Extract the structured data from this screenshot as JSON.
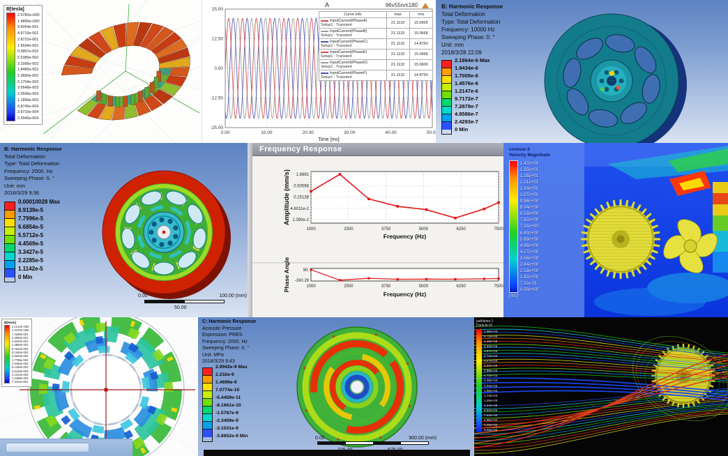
{
  "panels": {
    "maxwell_top": {
      "legend_title": "B[tesla]",
      "legend_values": [
        "2.5782e+000",
        "1.4895e+000",
        "8.6054e-001",
        "4.9716e-001",
        "2.8722e-001",
        "1.6594e-001",
        "9.5867e-002",
        "5.5385e-002",
        "3.1996e-002",
        "1.8485e-002",
        "1.0680e-002",
        "6.1704e-003",
        "3.5648e-003",
        "2.0596e-003",
        "1.1899e-003",
        "6.8745e-004",
        "3.9716e-004",
        "2.2945e-004"
      ]
    },
    "harmonic_10000": {
      "header_lines": [
        "B: Harmonic Response",
        "Total Deformation",
        "Type: Total Deformation",
        "Frequency: 10000 Hz",
        "Sweeping Phase: 0. °",
        "Unit: mm",
        "2018/3/28 22:09"
      ],
      "legend_values": [
        "2.1864e-6 Max",
        "1.9434e-6",
        "1.7005e-6",
        "1.4576e-6",
        "1.2147e-6",
        "9.7172e-7",
        "7.2879e-7",
        "4.8586e-7",
        "2.4293e-7",
        "0 Min"
      ]
    },
    "harmonic_2000": {
      "header_lines": [
        "B: Harmonic Response",
        "Total Deformation",
        "Type: Total Deformation",
        "Frequency: 2000. Hz",
        "Sweeping Phase: 0. °",
        "Unit: mm",
        "2018/3/29 9:36"
      ],
      "legend_values": [
        "0.00010028 Max",
        "8.9139e-5",
        "7.7996e-5",
        "6.6854e-5",
        "5.5712e-5",
        "4.4569e-5",
        "3.3427e-5",
        "2.2285e-5",
        "1.1142e-5",
        "0 Min"
      ],
      "scale_bar": {
        "left": "0.00",
        "center": "50.00",
        "right": "100.00 (mm)"
      }
    },
    "frequency_response": {
      "title": "Frequency Response"
    },
    "cfd_contour": {
      "legend_title_lines": [
        "contour-2",
        "Velocity Magnitude"
      ],
      "legend_values": [
        "1.42e+01",
        "1.35e+01",
        "1.28e+01",
        "1.21e+01",
        "1.14e+01",
        "1.07e+01",
        "9.96e+00",
        "9.24e+00",
        "8.53e+00",
        "7.82e+00",
        "7.11e+00",
        "6.40e+00",
        "5.69e+00",
        "4.98e+00",
        "4.27e+00",
        "3.56e+00",
        "2.84e+00",
        "2.13e+00",
        "1.42e+00",
        "7.11e-01",
        "0.00e+00"
      ],
      "unit": "[m/s]"
    },
    "maxwell_bottom": {
      "legend_title": "B[tesla]",
      "legend_values": [
        "2.1213e+000",
        "1.2470e+000",
        "7.3306e-001",
        "4.3093e-001",
        "2.5332e-001",
        "1.4892e-001",
        "8.7543e-002",
        "5.1464e-002",
        "3.0254e-002",
        "1.7785e-002",
        "1.0455e-002",
        "6.1465e-003",
        "3.6133e-003",
        "2.1242e-003",
        "1.2488e-003",
        "7.3411e-004"
      ]
    },
    "acoustic": {
      "header_lines": [
        "C: Harmonic Response",
        "Acoustic Pressure",
        "Expression: PRES",
        "Frequency: 2000. Hz",
        "Sweeping Phase: 0. °",
        "Unit: MPa",
        "2018/3/29 9:43"
      ],
      "legend_values": [
        "2.9942e-9 Max",
        "2.232e-9",
        "1.4699e-9",
        "7.0774e-10",
        "-5.4459e-11",
        "-8.1661e-10",
        "-1.5787e-9",
        "-2.3409e-9",
        "-3.1031e-9",
        "-3.8652e-9 Min"
      ],
      "scale_bar": {
        "left": "0.00",
        "right": "900.00 (mm)",
        "below_left": "225.00",
        "below_right": "675.00"
      }
    },
    "pathlines": {
      "legend_title_lines": [
        "pathlines-1",
        "Particle ID"
      ],
      "legend_values": [
        "4.96e+03",
        "4.71e+03",
        "4.46e+03",
        "4.22e+03",
        "3.97e+03",
        "3.72e+03",
        "3.47e+03",
        "3.22e+03",
        "2.98e+03",
        "2.73e+03",
        "2.48e+03",
        "2.23e+03",
        "1.98e+03",
        "1.74e+03",
        "1.49e+03",
        "1.24e+03",
        "9.92e+02",
        "7.44e+02",
        "4.96e+02",
        "2.48e+02",
        "0.00e+00"
      ]
    }
  },
  "chart_data": [
    {
      "type": "line",
      "title": "96v55nm180",
      "corner_label": "A",
      "xlabel": "Time [ms]",
      "xlim": [
        0,
        50
      ],
      "ylim": [
        -25,
        25
      ],
      "xticks": [
        "0.00",
        "10.00",
        "20.00",
        "30.00",
        "40.00",
        "50.00"
      ],
      "yticks": [
        "25.00",
        "12.50",
        "0.00",
        "-12.50",
        "-25.00"
      ],
      "waveform": {
        "amplitude": 21.1132,
        "cycles_shown": 15,
        "phases_deg": [
          0,
          120,
          240
        ]
      },
      "legend_table": {
        "columns": [
          "Curve Info",
          "max",
          "rms"
        ],
        "rows": [
          {
            "name": "InputCurrent(PhaseA)",
            "setup": "Setup1 : Transient",
            "max": "21.1132",
            "rms": "15.0606",
            "color": "#d24747"
          },
          {
            "name": "InputCurrent(PhaseB)",
            "setup": "Setup1 : Transient",
            "max": "21.1132",
            "rms": "15.0668",
            "color": "#9a9aa2"
          },
          {
            "name": "InputCurrent(PhaseC)",
            "setup": "Setup1 : Transient",
            "max": "21.1132",
            "rms": "14.8750",
            "color": "#4a55b4"
          },
          {
            "name": "InputCurrent(PhaseE)",
            "setup": "Setup1 : Transient",
            "max": "21.1132",
            "rms": "15.0668",
            "color": "#d24747"
          },
          {
            "name": "InputCurrent(PhaseD)",
            "setup": "Setup1 : Transient",
            "max": "21.1132",
            "rms": "15.0606",
            "color": "#9a9aa2"
          },
          {
            "name": "InputCurrent(PhaseF)",
            "setup": "Setup1 : Transient",
            "max": "21.1132",
            "rms": "14.8750",
            "color": "#4a55b4"
          }
        ]
      }
    },
    {
      "type": "line",
      "ylabel": "Amplitude (mm/s)",
      "xlabel": "Frequency (Hz)",
      "yscale": "log",
      "yticks": [
        "1.6881",
        "0.50598",
        "0.15138",
        "4.6011e-2",
        "1.390e-2"
      ],
      "xticks": [
        "1000",
        "2500",
        "3750",
        "5000",
        "6250",
        "7500"
      ],
      "xlim": [
        1000,
        7500
      ],
      "ylim": [
        0.0095,
        2.3
      ],
      "x": [
        1000,
        2000,
        3000,
        4000,
        5000,
        6000,
        7000,
        7500
      ],
      "y": [
        0.28,
        1.69,
        0.125,
        0.057,
        0.04,
        0.0165,
        0.043,
        0.085
      ],
      "line_color": "#e01818"
    },
    {
      "type": "line",
      "ylabel": "Phase Angle",
      "xlabel": "Frequency (Hz)",
      "yticks": [
        "90.",
        "-160.29"
      ],
      "xticks": [
        "1000",
        "2500",
        "3750",
        "5000",
        "6250",
        "7500"
      ],
      "xlim": [
        1000,
        7500
      ],
      "ylim": [
        -180,
        120
      ],
      "x": [
        1000,
        2000,
        3000,
        4000,
        5000,
        6000,
        7000,
        7500
      ],
      "y": [
        90,
        -160.29,
        -115,
        -138,
        -135,
        -136,
        -128,
        -122
      ],
      "line_color": "#e01818"
    }
  ]
}
